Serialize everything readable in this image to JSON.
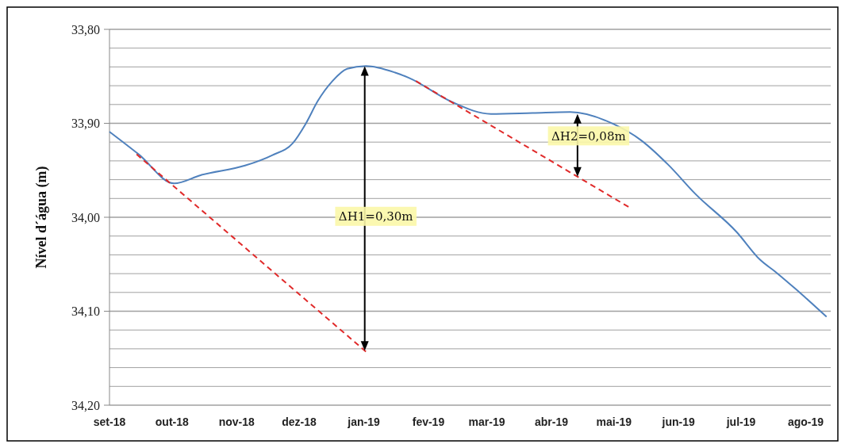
{
  "chart_data": {
    "type": "line",
    "ylabel": "Nível d´água (m)",
    "grid": "y",
    "xlim": [
      "2018-09-01",
      "2019-08-13"
    ],
    "xticks": [
      {
        "value": "2018-09-01",
        "label": "set-18"
      },
      {
        "value": "2018-10-01",
        "label": "out-18"
      },
      {
        "value": "2018-11-01",
        "label": "nov-18"
      },
      {
        "value": "2018-12-01",
        "label": "dez-18"
      },
      {
        "value": "2019-01-01",
        "label": "jan-19"
      },
      {
        "value": "2019-02-01",
        "label": "fev-19"
      },
      {
        "value": "2019-03-01",
        "label": "mar-19"
      },
      {
        "value": "2019-04-01",
        "label": "abr-19"
      },
      {
        "value": "2019-05-01",
        "label": "mai-19"
      },
      {
        "value": "2019-06-01",
        "label": "jun-19"
      },
      {
        "value": "2019-07-01",
        "label": "jul-19"
      },
      {
        "value": "2019-08-01",
        "label": "ago-19"
      }
    ],
    "ylim": [
      34.2,
      33.8
    ],
    "yticks": [
      {
        "value": 33.8,
        "label": "33,80"
      },
      {
        "value": 33.82,
        "label": null
      },
      {
        "value": 33.84,
        "label": null
      },
      {
        "value": 33.86,
        "label": null
      },
      {
        "value": 33.88,
        "label": null
      },
      {
        "value": 33.9,
        "label": "33,90"
      },
      {
        "value": 33.92,
        "label": null
      },
      {
        "value": 33.94,
        "label": null
      },
      {
        "value": 33.96,
        "label": null
      },
      {
        "value": 33.98,
        "label": null
      },
      {
        "value": 34.0,
        "label": "34,00"
      },
      {
        "value": 34.02,
        "label": null
      },
      {
        "value": 34.04,
        "label": null
      },
      {
        "value": 34.06,
        "label": null
      },
      {
        "value": 34.08,
        "label": null
      },
      {
        "value": 34.1,
        "label": "34,10"
      },
      {
        "value": 34.12,
        "label": null
      },
      {
        "value": 34.14,
        "label": null
      },
      {
        "value": 34.16,
        "label": null
      },
      {
        "value": 34.18,
        "label": null
      },
      {
        "value": 34.2,
        "label": "34,20"
      }
    ],
    "series": [
      {
        "color": "#4f81bd",
        "line_style": "solid",
        "x": [
          "2018-09-01",
          "2018-09-15",
          "2018-10-02",
          "2018-10-15",
          "2018-11-05",
          "2018-11-18",
          "2018-11-28",
          "2018-12-04",
          "2018-12-10",
          "2018-12-17",
          "2018-12-24",
          "2019-01-02",
          "2019-01-16",
          "2019-01-23",
          "2019-02-12",
          "2019-03-03",
          "2019-03-23",
          "2019-04-10",
          "2019-05-01",
          "2019-05-14",
          "2019-05-27",
          "2019-06-09",
          "2019-06-29",
          "2019-07-10",
          "2019-07-18",
          "2019-07-27",
          "2019-08-11"
        ],
        "values": [
          33.909,
          33.933,
          33.964,
          33.955,
          33.945,
          33.934,
          33.921,
          33.901,
          33.876,
          33.855,
          33.842,
          33.839,
          33.846,
          33.852,
          33.877,
          33.89,
          33.889,
          33.888,
          33.901,
          33.918,
          33.944,
          33.975,
          34.016,
          34.045,
          34.059,
          34.076,
          34.106
        ]
      },
      {
        "color": "#e02a2a",
        "line_style": "dashed",
        "x": [
          "2018-09-14",
          "2019-01-02"
        ],
        "values": [
          33.933,
          34.143
        ]
      },
      {
        "color": "#e02a2a",
        "line_style": "dashed",
        "x": [
          "2019-01-26",
          "2019-05-08"
        ],
        "values": [
          33.855,
          33.989
        ]
      }
    ],
    "annotations": [
      "ΔH1=0,30m",
      "ΔH2=0,08m"
    ]
  }
}
